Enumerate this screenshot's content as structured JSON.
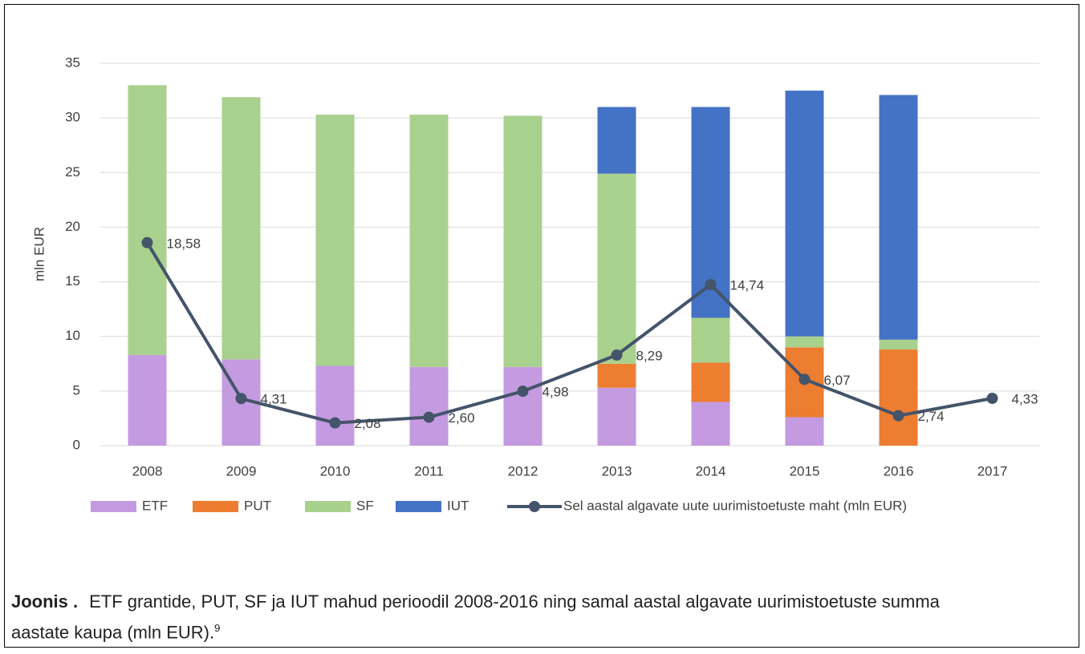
{
  "chart_data": {
    "type": "combo",
    "ylabel": "mln EUR",
    "categories": [
      "2008",
      "2009",
      "2010",
      "2011",
      "2012",
      "2013",
      "2014",
      "2015",
      "2016",
      "2017"
    ],
    "series": [
      {
        "name": "ETF",
        "type": "bar",
        "color": "#c49ae0",
        "values": [
          8.3,
          7.9,
          7.3,
          7.2,
          7.2,
          5.3,
          4.0,
          2.6,
          0,
          null
        ]
      },
      {
        "name": "PUT",
        "type": "bar",
        "color": "#ed7d31",
        "values": [
          0,
          0,
          0,
          0,
          0,
          2.2,
          3.6,
          6.4,
          8.8,
          null
        ]
      },
      {
        "name": "SF",
        "type": "bar",
        "color": "#a9d18e",
        "values": [
          24.7,
          24.0,
          23.0,
          23.1,
          23.0,
          17.4,
          4.1,
          1.0,
          0.9,
          null
        ]
      },
      {
        "name": "IUT",
        "type": "bar",
        "color": "#4472c4",
        "values": [
          0,
          0,
          0,
          0,
          0,
          6.1,
          19.3,
          22.5,
          22.4,
          null
        ]
      },
      {
        "name": "Sel aastal algavate uute uurimistoetuste maht (mln EUR)",
        "type": "line",
        "color": "#44546a",
        "values": [
          18.58,
          4.31,
          2.08,
          2.6,
          4.98,
          8.29,
          14.74,
          6.07,
          2.74,
          4.33
        ],
        "value_labels": [
          "18,58",
          "4,31",
          "2,08",
          "2,60",
          "4,98",
          "8,29",
          "14,74",
          "6,07",
          "2,74",
          "4,33"
        ]
      }
    ],
    "ylim": [
      0,
      35
    ],
    "yticks": [
      0,
      5,
      10,
      15,
      20,
      25,
      30,
      35
    ],
    "grid": true,
    "legend": "bottom"
  },
  "caption": {
    "label": "Joonis .",
    "text": "ETF grantide, PUT, SF ja IUT mahud perioodil 2008-2016 ning samal aastal algavate uurimistoetuste summa aastate kaupa (mln EUR).",
    "note": "9"
  }
}
